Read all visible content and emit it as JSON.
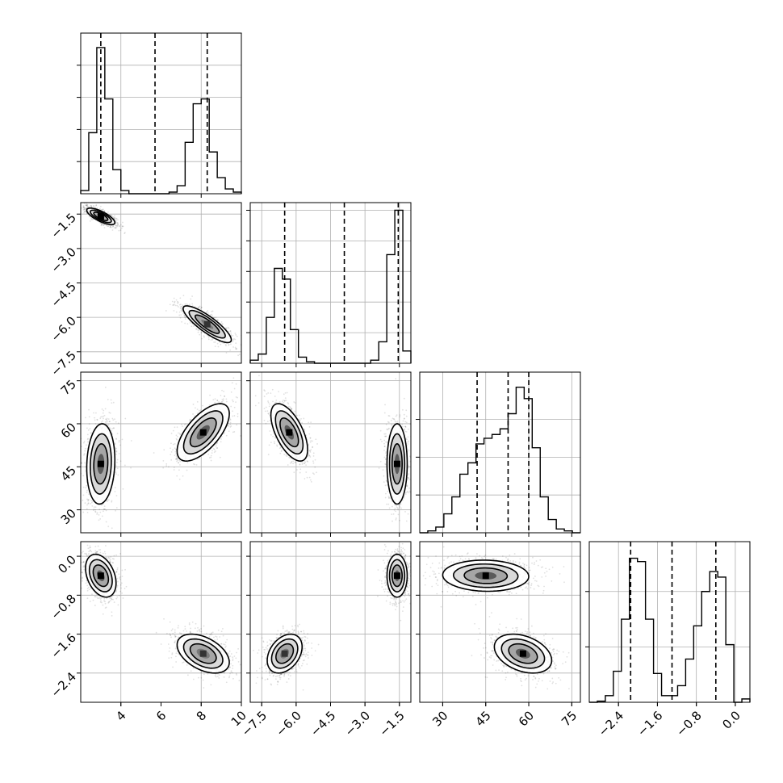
{
  "chart_data": {
    "type": "corner",
    "grid": true,
    "params": [
      {
        "id": "p0",
        "range": [
          2.0,
          10.0
        ],
        "ticks": [
          4,
          8
        ],
        "tick_labels": [
          "4",
          "8"
        ],
        "quantiles": [
          3.0,
          5.7,
          8.3
        ]
      },
      {
        "id": "p1",
        "range": [
          -8.0,
          -1.0
        ],
        "ticks": [
          -7.5,
          -6.0,
          -4.5,
          -3.0,
          -1.5
        ],
        "tick_labels": [
          "−7.5",
          "−6.0",
          "−4.5",
          "−3.0",
          "−1.5"
        ],
        "quantiles": [
          -6.5,
          -3.9,
          -1.55
        ]
      },
      {
        "id": "p2",
        "range": [
          22,
          78
        ],
        "ticks": [
          30,
          45,
          60,
          75
        ],
        "tick_labels": [
          "30",
          "45",
          "60",
          "75"
        ],
        "quantiles": [
          42.0,
          52.8,
          60.0
        ]
      },
      {
        "id": "p3",
        "range": [
          -3.0,
          0.3
        ],
        "ticks": [
          -2.4,
          -1.6,
          -0.8,
          0.0
        ],
        "tick_labels": [
          "−2.4",
          "−1.6",
          "−0.8",
          "0.0"
        ],
        "quantiles": [
          -2.15,
          -1.3,
          -0.4
        ]
      }
    ],
    "bottom_axis_ticks": {
      "p0": {
        "ticks": [
          4,
          6,
          8,
          10
        ],
        "tick_labels": [
          "4",
          "6",
          "8",
          "10"
        ]
      },
      "p1": {
        "ticks": [
          -7.5,
          -6.0,
          -4.5,
          -3.0,
          -1.5
        ],
        "tick_labels": [
          "−7.5",
          "−6.0",
          "−4.5",
          "−3.0",
          "−1.5"
        ]
      },
      "p2": {
        "ticks": [
          30,
          45,
          60,
          75
        ],
        "tick_labels": [
          "30",
          "45",
          "60",
          "75"
        ]
      },
      "p3": {
        "ticks": [
          -2.4,
          -1.6,
          -0.8,
          0.0
        ],
        "tick_labels": [
          "−2.4",
          "−1.6",
          "−0.8",
          "0.0"
        ]
      }
    },
    "histograms": [
      {
        "param": "p0",
        "edges": [
          2.0,
          2.4,
          2.8,
          3.2,
          3.6,
          4.0,
          4.4,
          4.8,
          5.2,
          5.6,
          6.0,
          6.4,
          6.8,
          7.2,
          7.6,
          8.0,
          8.4,
          8.8,
          9.2,
          9.6,
          10.0
        ],
        "counts": [
          0.02,
          0.38,
          0.91,
          0.59,
          0.15,
          0.02,
          0.0,
          0.0,
          0.0,
          0.0,
          0.0,
          0.01,
          0.05,
          0.32,
          0.56,
          0.59,
          0.26,
          0.1,
          0.03,
          0.01
        ],
        "ymax": 1.0,
        "ticks": [
          0.2,
          0.4,
          0.6,
          0.8
        ]
      },
      {
        "param": "p1",
        "edges": [
          -8.0,
          -7.65,
          -7.3,
          -6.95,
          -6.6,
          -6.25,
          -5.9,
          -5.55,
          -5.2,
          -4.85,
          -4.5,
          -4.15,
          -3.8,
          -3.45,
          -3.1,
          -2.75,
          -2.4,
          -2.05,
          -1.7,
          -1.35,
          -1.0
        ],
        "counts": [
          0.02,
          0.06,
          0.3,
          0.62,
          0.55,
          0.22,
          0.04,
          0.01,
          0.0,
          0.0,
          0.0,
          0.0,
          0.0,
          0.0,
          0.0,
          0.02,
          0.14,
          0.71,
          1.0,
          0.08
        ],
        "ymax": 1.05,
        "ticks": [
          0.2,
          0.4,
          0.6,
          0.8,
          1.0
        ]
      },
      {
        "param": "p2",
        "edges": [
          22,
          24.8,
          27.6,
          30.4,
          33.2,
          36.0,
          38.8,
          41.6,
          44.4,
          47.2,
          50.0,
          52.8,
          55.6,
          58.4,
          61.2,
          64.0,
          66.8,
          69.6,
          72.4,
          75.2,
          78.0
        ],
        "counts": [
          0.0,
          0.01,
          0.03,
          0.1,
          0.19,
          0.31,
          0.37,
          0.47,
          0.5,
          0.52,
          0.55,
          0.63,
          0.77,
          0.71,
          0.45,
          0.19,
          0.07,
          0.02,
          0.01,
          0.0
        ],
        "ymax": 0.85,
        "ticks": [
          0.2,
          0.4,
          0.6
        ]
      },
      {
        "param": "p3",
        "edges": [
          -3.0,
          -2.835,
          -2.67,
          -2.505,
          -2.34,
          -2.175,
          -2.01,
          -1.845,
          -1.68,
          -1.515,
          -1.35,
          -1.185,
          -1.02,
          -0.855,
          -0.69,
          -0.525,
          -0.36,
          -0.195,
          -0.03,
          0.135,
          0.3
        ],
        "counts": [
          0.0,
          0.01,
          0.06,
          0.28,
          0.75,
          1.3,
          1.27,
          0.75,
          0.26,
          0.06,
          0.06,
          0.15,
          0.39,
          0.69,
          1.0,
          1.18,
          1.13,
          0.52,
          0.0,
          0.03
        ],
        "ymax": 1.45,
        "ticks": [
          0.5,
          1.0
        ]
      }
    ],
    "pairs": [
      {
        "x": "p0",
        "y": "p1",
        "modes": [
          {
            "cx": 3.0,
            "cy": -1.6,
            "sx": 0.35,
            "sy": 0.18,
            "rho": -0.75,
            "peak": 1.0
          },
          {
            "cx": 8.3,
            "cy": -6.3,
            "sx": 0.6,
            "sy": 0.4,
            "rho": -0.85,
            "peak": 0.55
          }
        ]
      },
      {
        "x": "p0",
        "y": "p2",
        "modes": [
          {
            "cx": 3.0,
            "cy": 46.0,
            "sx": 0.35,
            "sy": 7.0,
            "rho": 0.1,
            "peak": 0.85
          },
          {
            "cx": 8.1,
            "cy": 57.0,
            "sx": 0.65,
            "sy": 5.0,
            "rho": 0.65,
            "peak": 1.0
          }
        ]
      },
      {
        "x": "p0",
        "y": "p3",
        "modes": [
          {
            "cx": 3.0,
            "cy": -0.4,
            "sx": 0.38,
            "sy": 0.22,
            "rho": -0.35,
            "peak": 1.0
          },
          {
            "cx": 8.1,
            "cy": -2.0,
            "sx": 0.65,
            "sy": 0.2,
            "rho": -0.45,
            "peak": 0.75
          }
        ]
      },
      {
        "x": "p1",
        "y": "p2",
        "modes": [
          {
            "cx": -6.3,
            "cy": 57.0,
            "sx": 0.4,
            "sy": 5.0,
            "rho": -0.6,
            "peak": 1.0
          },
          {
            "cx": -1.6,
            "cy": 46.0,
            "sx": 0.22,
            "sy": 7.0,
            "rho": 0.0,
            "peak": 0.85
          }
        ]
      },
      {
        "x": "p1",
        "y": "p3",
        "modes": [
          {
            "cx": -6.5,
            "cy": -2.0,
            "sx": 0.38,
            "sy": 0.2,
            "rho": 0.35,
            "peak": 0.7
          },
          {
            "cx": -1.6,
            "cy": -0.4,
            "sx": 0.22,
            "sy": 0.22,
            "rho": 0.0,
            "peak": 1.0
          }
        ]
      },
      {
        "x": "p2",
        "y": "p3",
        "modes": [
          {
            "cx": 45.0,
            "cy": -0.4,
            "sx": 7.5,
            "sy": 0.16,
            "rho": -0.05,
            "peak": 0.8
          },
          {
            "cx": 58.0,
            "cy": -2.0,
            "sx": 5.0,
            "sy": 0.2,
            "rho": -0.35,
            "peak": 1.0
          }
        ]
      }
    ]
  }
}
